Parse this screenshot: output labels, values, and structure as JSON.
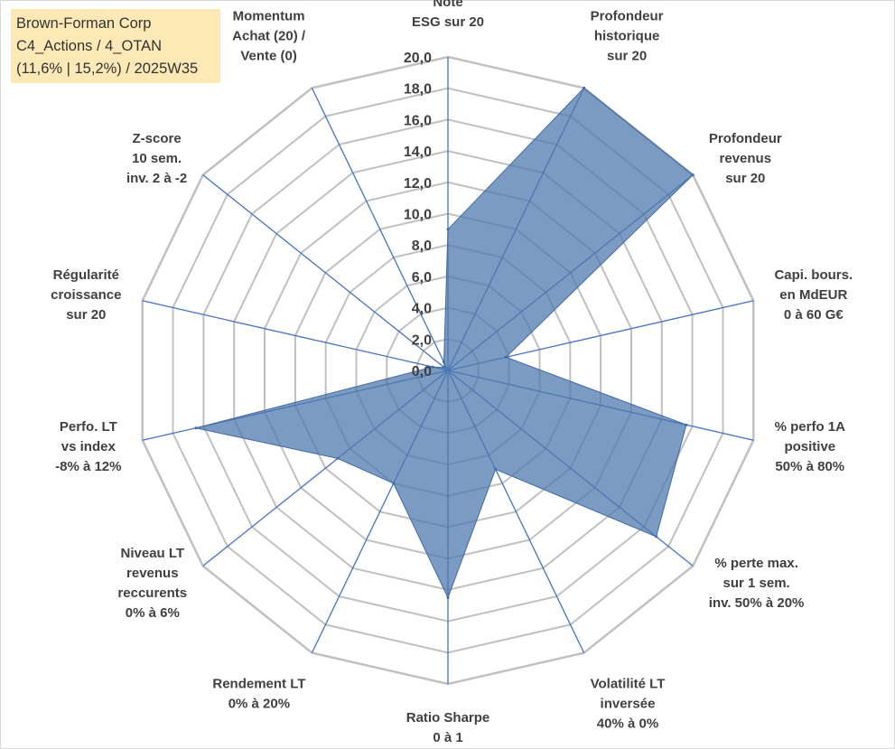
{
  "title_box": {
    "line1": "Brown-Forman Corp",
    "line2": "C4_Actions / 4_OTAN",
    "line3": "(11,6% | 15,2%) / 2025W35"
  },
  "chart_data": {
    "type": "radar",
    "rmin": 0,
    "rmax": 20,
    "tick_step": 2,
    "tick_labels": [
      "0,0",
      "2,0",
      "4,0",
      "6,0",
      "8,0",
      "10,0",
      "12,0",
      "14,0",
      "16,0",
      "18,0",
      "20,0"
    ],
    "grid": true,
    "fill_color": "#4f7aad",
    "fill_opacity": 0.75,
    "grid_color": "#c0c0c0",
    "spoke_color": "#4472c4",
    "axes": [
      {
        "label": [
          "Note",
          "ESG sur 20"
        ],
        "value": 9.0
      },
      {
        "label": [
          "Profondeur",
          "historique",
          "sur 20"
        ],
        "value": 20.0
      },
      {
        "label": [
          "Profondeur",
          "revenus",
          "sur 20"
        ],
        "value": 20.0
      },
      {
        "label": [
          "Capi. bours.",
          "en MdEUR",
          "0 à 60 G€"
        ],
        "value": 3.8
      },
      {
        "label": [
          "% perfo 1A",
          "positive",
          "50% à 80%"
        ],
        "value": 15.6
      },
      {
        "label": [
          "% perte max.",
          "sur 1 sem.",
          "inv. 50% à 20%"
        ],
        "value": 17.0
      },
      {
        "label": [
          "Volatilité LT",
          "inversée",
          "40% à 0%"
        ],
        "value": 7.0
      },
      {
        "label": [
          "Ratio Sharpe",
          "0 à 1"
        ],
        "value": 14.5
      },
      {
        "label": [
          "Rendement LT",
          "0% à 20%"
        ],
        "value": 8.0
      },
      {
        "label": [
          "Niveau LT",
          "revenus",
          "reccurents",
          "0% à 6%"
        ],
        "value": 9.0
      },
      {
        "label": [
          "Perfo. LT",
          "vs index",
          "-8% à 12%"
        ],
        "value": 16.5
      },
      {
        "label": [
          "Régularité",
          "croissance",
          "sur 20"
        ],
        "value": 1.0
      },
      {
        "label": [
          "Z-score",
          "10 sem.",
          "inv. 2 à -2"
        ],
        "value": 0.3
      },
      {
        "label": [
          "Momentum",
          "Achat (20) /",
          "Vente (0)"
        ],
        "value": 0.6
      }
    ]
  }
}
